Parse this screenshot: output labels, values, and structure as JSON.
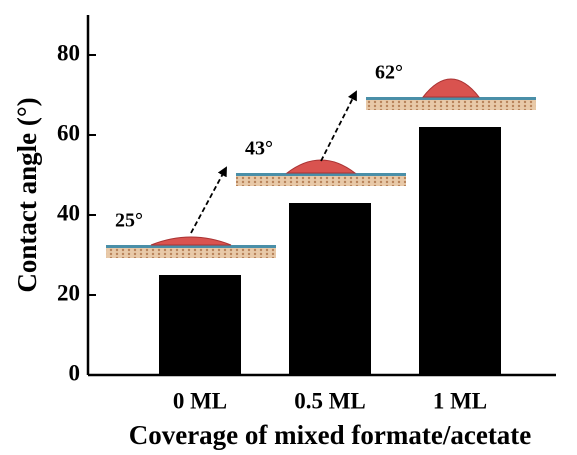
{
  "chart_data": {
    "type": "bar",
    "x_label": "Coverage of mixed formate/acetate",
    "y_label": "Contact angle (°)",
    "categories": [
      "0 ML",
      "0.5 ML",
      "1 ML"
    ],
    "values": [
      25,
      43,
      62
    ],
    "value_labels": [
      "25°",
      "43°",
      "62°"
    ],
    "color": "#000000",
    "ylim": [
      0,
      90
    ],
    "yticks": [
      0,
      20,
      40,
      60,
      80
    ],
    "grid": false
  }
}
